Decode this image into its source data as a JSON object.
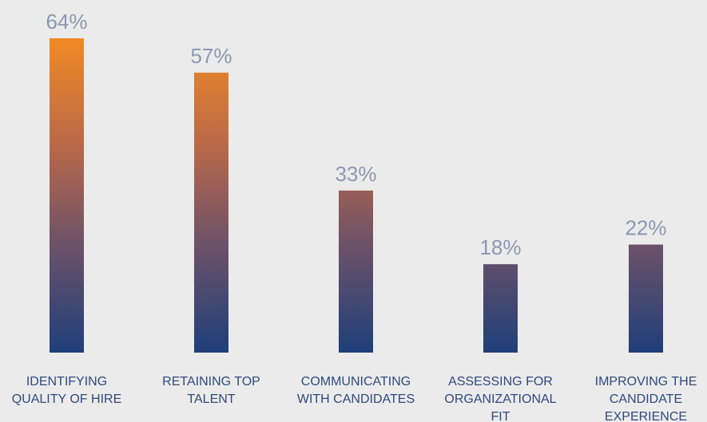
{
  "chart_data": {
    "type": "bar",
    "categories": [
      [
        "IDENTIFYING",
        "QUALITY OF HIRE"
      ],
      [
        "RETAINING TOP",
        "TALENT"
      ],
      [
        "COMMUNICATING",
        "WITH CANDIDATES"
      ],
      [
        "ASSESSING FOR",
        "ORGANIZATIONAL",
        "FIT"
      ],
      [
        "IMPROVING THE",
        "CANDIDATE",
        "EXPERIENCE"
      ]
    ],
    "values": [
      64,
      57,
      33,
      18,
      22
    ],
    "value_labels": [
      "64%",
      "57%",
      "33%",
      "18%",
      "22%"
    ],
    "ylim": [
      0,
      64
    ],
    "grid": false,
    "colors": {
      "background": "#ebebeb",
      "bar_top": "#f08a24",
      "bar_bottom": "#1f3f7a",
      "value_text": "#8d97b3",
      "category_text": "#2f4a7e"
    }
  }
}
